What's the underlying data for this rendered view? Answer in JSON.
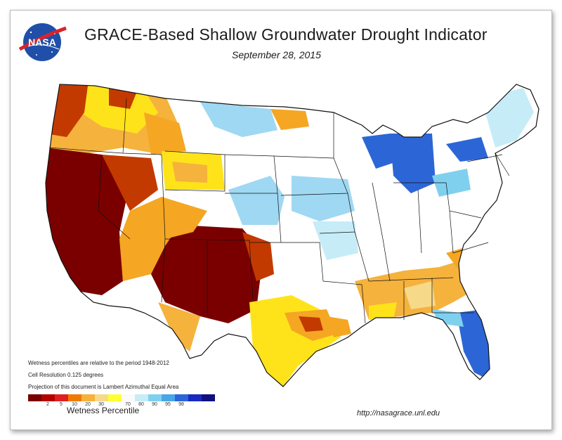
{
  "header": {
    "logo_text": "NASA",
    "title": "GRACE-Based Shallow Groundwater Drought Indicator",
    "date": "September 28, 2015"
  },
  "notes": [
    "Wetness percentiles are relative to the period 1948-2012",
    "Cell Resolution 0.125 degrees",
    "Projection of this document is Lambert Azimuthal Equal Area"
  ],
  "legend": {
    "title": "Wetness Percentile",
    "colors": [
      "#7a0000",
      "#b30000",
      "#e02020",
      "#f07a00",
      "#f5b23c",
      "#f7d98a",
      "#ffff33",
      "#fafafa",
      "#c6ecf7",
      "#7fd0ef",
      "#4aa6e6",
      "#2c66d6",
      "#1a2ac0",
      "#101080"
    ],
    "tick_labels": [
      "2",
      "5",
      "10",
      "20",
      "30",
      "70",
      "80",
      "90",
      "95",
      "98"
    ]
  },
  "colors": {
    "extreme_dry": "#7a0000",
    "severe_dry": "#c33a00",
    "moderate_dry": "#f5a623",
    "abnormal_dry": "#ffe31a",
    "normal": "#ffffff",
    "wet": "#9fd8f2",
    "very_wet": "#2c66d6"
  },
  "footer": {
    "url": "http://nasagrace.unl.edu"
  }
}
